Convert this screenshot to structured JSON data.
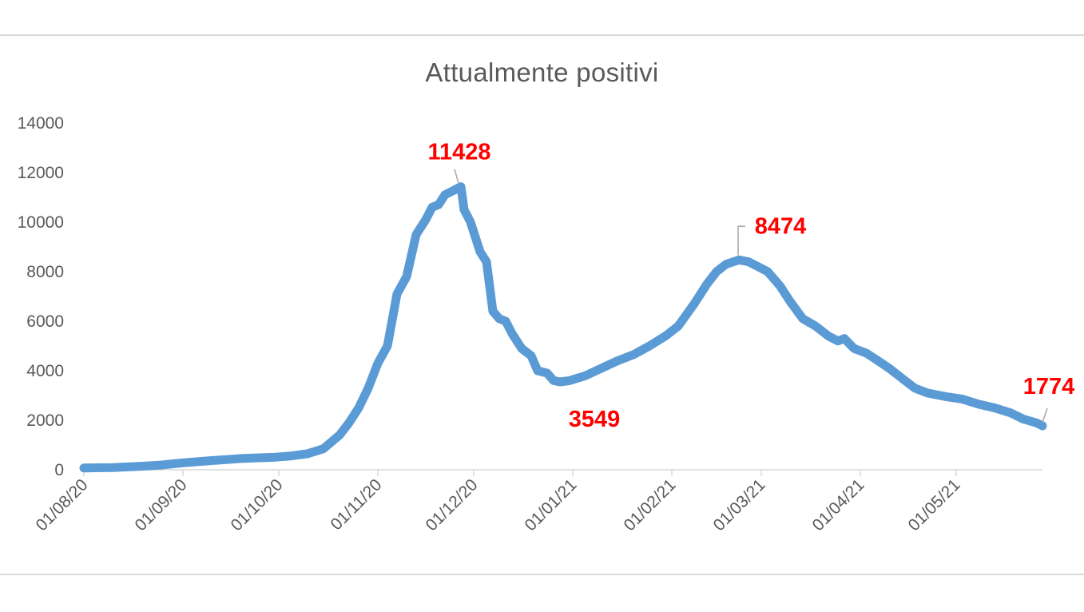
{
  "chart_data": {
    "type": "line",
    "title": "Attualmente positivi",
    "xlabel": "",
    "ylabel": "",
    "ylim": [
      0,
      14000
    ],
    "yticks": [
      0,
      2000,
      4000,
      6000,
      8000,
      10000,
      12000,
      14000
    ],
    "xticks": [
      "01/08/20",
      "01/09/20",
      "01/10/20",
      "01/11/20",
      "01/12/20",
      "01/01/21",
      "01/02/21",
      "01/03/21",
      "01/04/21",
      "01/05/21"
    ],
    "x_range": [
      "2020-08-01",
      "2021-05-28"
    ],
    "grid": false,
    "legend": "none",
    "color": "#5b9bd5",
    "label_color": "#ff0000",
    "series": [
      {
        "values": [
          [
            "2020-08-01",
            70
          ],
          [
            "2020-08-10",
            90
          ],
          [
            "2020-08-20",
            150
          ],
          [
            "2020-08-25",
            190
          ],
          [
            "2020-09-01",
            280
          ],
          [
            "2020-09-10",
            370
          ],
          [
            "2020-09-20",
            460
          ],
          [
            "2020-09-30",
            510
          ],
          [
            "2020-10-05",
            560
          ],
          [
            "2020-10-10",
            650
          ],
          [
            "2020-10-15",
            850
          ],
          [
            "2020-10-20",
            1400
          ],
          [
            "2020-10-23",
            1900
          ],
          [
            "2020-10-26",
            2500
          ],
          [
            "2020-10-29",
            3300
          ],
          [
            "2020-11-01",
            4300
          ],
          [
            "2020-11-04",
            5000
          ],
          [
            "2020-11-07",
            7100
          ],
          [
            "2020-11-10",
            7800
          ],
          [
            "2020-11-13",
            9500
          ],
          [
            "2020-11-16",
            10100
          ],
          [
            "2020-11-18",
            10600
          ],
          [
            "2020-11-20",
            10700
          ],
          [
            "2020-11-22",
            11100
          ],
          [
            "2020-11-25",
            11300
          ],
          [
            "2020-11-27",
            11428
          ],
          [
            "2020-11-28",
            10500
          ],
          [
            "2020-11-30",
            10000
          ],
          [
            "2020-12-03",
            8800
          ],
          [
            "2020-12-05",
            8400
          ],
          [
            "2020-12-07",
            6400
          ],
          [
            "2020-12-09",
            6100
          ],
          [
            "2020-12-11",
            6000
          ],
          [
            "2020-12-13",
            5500
          ],
          [
            "2020-12-16",
            4900
          ],
          [
            "2020-12-19",
            4600
          ],
          [
            "2020-12-21",
            4000
          ],
          [
            "2020-12-24",
            3900
          ],
          [
            "2020-12-26",
            3600
          ],
          [
            "2020-12-28",
            3549
          ],
          [
            "2020-12-31",
            3600
          ],
          [
            "2021-01-05",
            3800
          ],
          [
            "2021-01-10",
            4100
          ],
          [
            "2021-01-15",
            4400
          ],
          [
            "2021-01-20",
            4650
          ],
          [
            "2021-01-25",
            5000
          ],
          [
            "2021-01-30",
            5400
          ],
          [
            "2021-02-03",
            5800
          ],
          [
            "2021-02-08",
            6700
          ],
          [
            "2021-02-12",
            7500
          ],
          [
            "2021-02-15",
            8000
          ],
          [
            "2021-02-18",
            8300
          ],
          [
            "2021-02-22",
            8474
          ],
          [
            "2021-02-25",
            8400
          ],
          [
            "2021-02-28",
            8200
          ],
          [
            "2021-03-03",
            8000
          ],
          [
            "2021-03-07",
            7400
          ],
          [
            "2021-03-10",
            6800
          ],
          [
            "2021-03-14",
            6100
          ],
          [
            "2021-03-18",
            5800
          ],
          [
            "2021-03-22",
            5400
          ],
          [
            "2021-03-25",
            5200
          ],
          [
            "2021-03-27",
            5300
          ],
          [
            "2021-03-30",
            4900
          ],
          [
            "2021-04-03",
            4700
          ],
          [
            "2021-04-06",
            4450
          ],
          [
            "2021-04-10",
            4100
          ],
          [
            "2021-04-14",
            3700
          ],
          [
            "2021-04-18",
            3300
          ],
          [
            "2021-04-22",
            3100
          ],
          [
            "2021-04-28",
            2950
          ],
          [
            "2021-05-03",
            2850
          ],
          [
            "2021-05-08",
            2650
          ],
          [
            "2021-05-13",
            2500
          ],
          [
            "2021-05-18",
            2300
          ],
          [
            "2021-05-22",
            2050
          ],
          [
            "2021-05-26",
            1900
          ],
          [
            "2021-05-28",
            1774
          ]
        ]
      }
    ],
    "data_labels": [
      {
        "date": "2020-11-27",
        "value": 11428,
        "text": "11428",
        "position": "above"
      },
      {
        "date": "2020-12-28",
        "value": 3549,
        "text": "3549",
        "position": "below"
      },
      {
        "date": "2021-02-22",
        "value": 8474,
        "text": "8474",
        "position": "above-right"
      },
      {
        "date": "2021-05-28",
        "value": 1774,
        "text": "1774",
        "position": "above"
      }
    ]
  }
}
